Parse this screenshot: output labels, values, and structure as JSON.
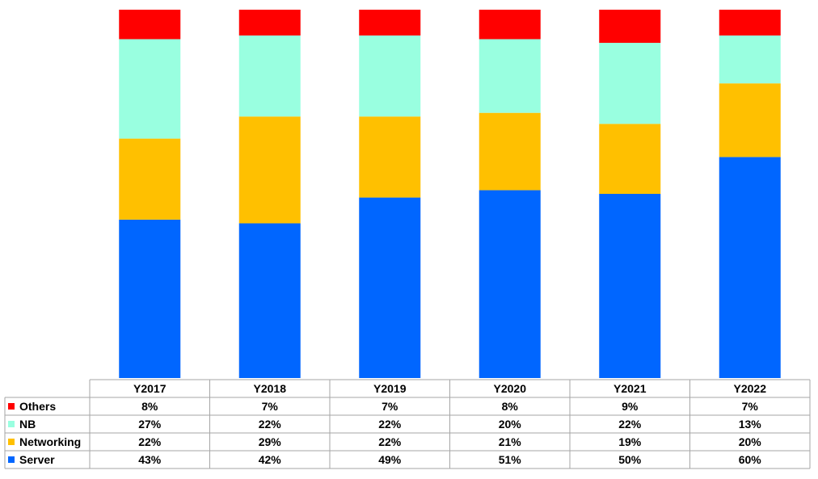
{
  "chart_data": {
    "type": "bar",
    "stacked": true,
    "normalized": true,
    "categories": [
      "Y2017",
      "Y2018",
      "Y2019",
      "Y2020",
      "Y2021",
      "Y2022"
    ],
    "series": [
      {
        "name": "Server",
        "color": "#0066FF",
        "values": [
          43,
          42,
          49,
          51,
          50,
          60
        ],
        "labels": [
          "43%",
          "42%",
          "49%",
          "51%",
          "50%",
          "60%"
        ]
      },
      {
        "name": "Networking",
        "color": "#FFC000",
        "values": [
          22,
          29,
          22,
          21,
          19,
          20
        ],
        "labels": [
          "22%",
          "29%",
          "22%",
          "21%",
          "19%",
          "20%"
        ]
      },
      {
        "name": "NB",
        "color": "#99FFE0",
        "values": [
          27,
          22,
          22,
          20,
          22,
          13
        ],
        "labels": [
          "27%",
          "22%",
          "22%",
          "20%",
          "22%",
          "13%"
        ]
      },
      {
        "name": "Others",
        "color": "#FF0000",
        "values": [
          8,
          7,
          7,
          8,
          9,
          7
        ],
        "labels": [
          "8%",
          "7%",
          "7%",
          "8%",
          "9%",
          "7%"
        ]
      }
    ],
    "data_table": {
      "row_order": [
        "Others",
        "NB",
        "Networking",
        "Server"
      ]
    },
    "legend": "data-table-rows",
    "grid": false,
    "title": "",
    "xlabel": "",
    "ylabel": ""
  }
}
